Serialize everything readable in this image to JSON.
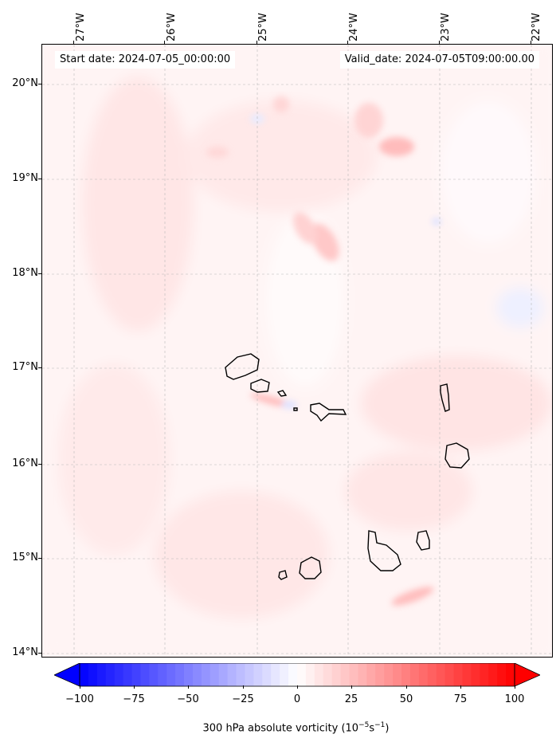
{
  "header": {
    "start_date": "Start date: 2024-07-05_00:00:00",
    "valid_date": "Valid_date: 2024-07-05T09:00:00.00"
  },
  "map": {
    "lon_labels": [
      "27°W",
      "26°W",
      "25°W",
      "24°W",
      "23°W",
      "22°W"
    ],
    "lat_labels": [
      "20°N",
      "19°N",
      "18°N",
      "17°N",
      "16°N",
      "15°N",
      "14°N"
    ],
    "lon_range": [
      -27.4,
      -21.8
    ],
    "lat_range": [
      13.95,
      20.45
    ],
    "grid": true,
    "coastline_color": "#000000"
  },
  "colorbar": {
    "tick_labels": [
      "−100",
      "−75",
      "−50",
      "−25",
      "0",
      "25",
      "50",
      "75",
      "100"
    ],
    "range": [
      -100,
      100
    ],
    "levels": 50,
    "extend": "both",
    "cmap": "bwr",
    "title": "300 hPa absolute vorticity (10",
    "title_exp1": "−5",
    "title_mid": "s",
    "title_exp2": "−1",
    "title_end": ")"
  }
}
